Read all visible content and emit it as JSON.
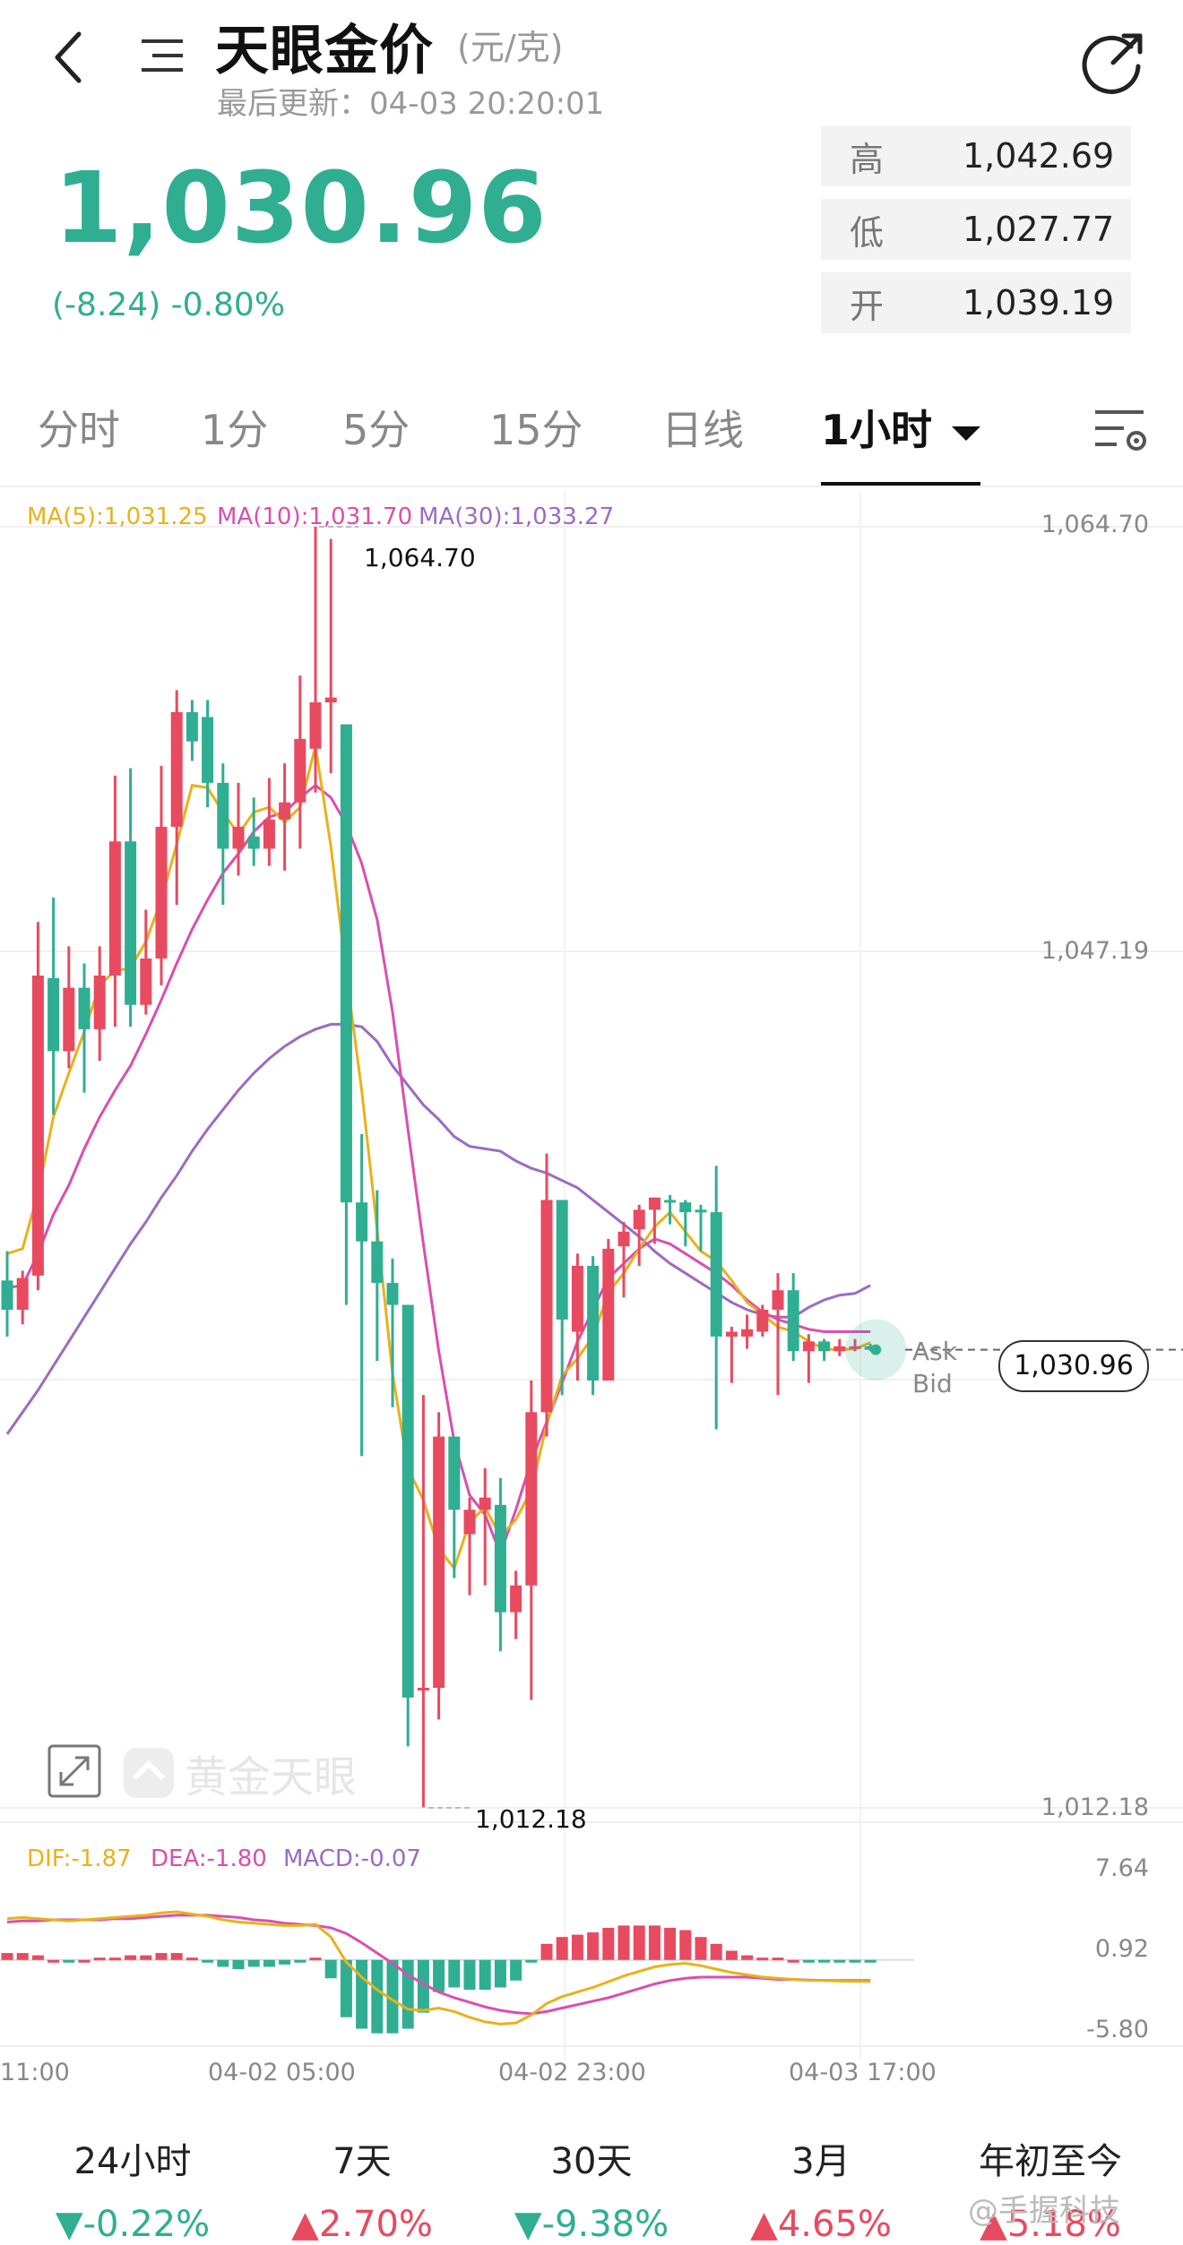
{
  "header": {
    "title": "天眼金价",
    "unit": "(元/克)",
    "updated": "最后更新：04-03 20:20:01",
    "price": "1,030.96",
    "change": "(-8.24)  -0.80%"
  },
  "stats": [
    {
      "key": "高",
      "value": "1,042.69"
    },
    {
      "key": "低",
      "value": "1,027.77"
    },
    {
      "key": "开",
      "value": "1,039.19"
    }
  ],
  "tabs": [
    "分时",
    "1分",
    "5分",
    "15分",
    "日线",
    "1小时"
  ],
  "active_tab": "1小时",
  "legend": {
    "ma5": "MA(5):1,031.25",
    "ma10": "MA(10):1,031.70",
    "ma30": "MA(30):1,033.27",
    "dif": "DIF:-1.87",
    "dea": "DEA:-1.80",
    "macd": "MACD:-0.07"
  },
  "y_axis": [
    "1,064.70",
    "1,047.19",
    "1,012.18"
  ],
  "macd_axis": [
    "7.64",
    "0.92",
    "-5.80"
  ],
  "max_label": "1,064.70",
  "min_label": "1,012.18",
  "current_label": "1,030.96",
  "ask_label": "Ask",
  "bid_label": "Bid",
  "brand_watermark": "黄金天眼",
  "x_axis": [
    "11:00",
    "04-02 05:00",
    "04-02 23:00",
    "04-03 17:00"
  ],
  "periods": [
    {
      "label": "24小时",
      "value": "-0.22%",
      "dir": "down"
    },
    {
      "label": "7天",
      "value": "2.70%",
      "dir": "up"
    },
    {
      "label": "30天",
      "value": "-9.38%",
      "dir": "down"
    },
    {
      "label": "3月",
      "value": "4.65%",
      "dir": "up"
    },
    {
      "label": "年初至今",
      "value": "5.18%",
      "dir": "up"
    }
  ],
  "watermark": "@手握科技",
  "colors": {
    "up": "#e84a5f",
    "down": "#2fae92",
    "ma5": "#e8b21a",
    "ma10": "#d94fb0",
    "ma30": "#9b6bc4"
  },
  "chart_data": {
    "type": "candlestick",
    "ylim": [
      1012.18,
      1064.7
    ],
    "candles": [
      {
        "o": 1033.8,
        "h": 1035.0,
        "c": 1032.6,
        "l": 1031.5
      },
      {
        "o": 1032.6,
        "h": 1034.2,
        "c": 1033.9,
        "l": 1032.0
      },
      {
        "o": 1034.0,
        "h": 1048.5,
        "c": 1046.3,
        "l": 1033.4
      },
      {
        "o": 1046.2,
        "h": 1049.5,
        "c": 1043.2,
        "l": 1040.6
      },
      {
        "o": 1043.2,
        "h": 1047.5,
        "c": 1045.8,
        "l": 1042.5
      },
      {
        "o": 1045.8,
        "h": 1046.8,
        "c": 1044.1,
        "l": 1041.5
      },
      {
        "o": 1044.1,
        "h": 1047.5,
        "c": 1046.3,
        "l": 1042.8
      },
      {
        "o": 1046.3,
        "h": 1054.5,
        "c": 1051.8,
        "l": 1044.2
      },
      {
        "o": 1051.8,
        "h": 1054.8,
        "c": 1045.1,
        "l": 1044.2
      },
      {
        "o": 1045.1,
        "h": 1049.0,
        "c": 1047.0,
        "l": 1044.7
      },
      {
        "o": 1047.0,
        "h": 1054.9,
        "c": 1052.4,
        "l": 1045.9
      },
      {
        "o": 1052.4,
        "h": 1058.0,
        "c": 1057.1,
        "l": 1049.2
      },
      {
        "o": 1057.1,
        "h": 1057.6,
        "c": 1055.9,
        "l": 1055.1
      },
      {
        "o": 1056.9,
        "h": 1057.6,
        "c": 1054.2,
        "l": 1053.2
      },
      {
        "o": 1054.2,
        "h": 1055.0,
        "c": 1051.5,
        "l": 1049.2
      },
      {
        "o": 1051.5,
        "h": 1054.2,
        "c": 1052.4,
        "l": 1050.4
      },
      {
        "o": 1052.0,
        "h": 1053.6,
        "c": 1051.5,
        "l": 1050.8
      },
      {
        "o": 1051.5,
        "h": 1054.4,
        "c": 1052.7,
        "l": 1050.8
      },
      {
        "o": 1052.7,
        "h": 1055.0,
        "c": 1053.4,
        "l": 1050.6
      },
      {
        "o": 1053.4,
        "h": 1058.6,
        "c": 1056.0,
        "l": 1051.5
      },
      {
        "o": 1055.6,
        "h": 1064.7,
        "c": 1057.5,
        "l": 1053.8
      },
      {
        "o": 1057.5,
        "h": 1064.2,
        "c": 1057.7,
        "l": 1054.6
      },
      {
        "o": 1056.6,
        "h": 1056.6,
        "c": 1037.0,
        "l": 1032.8
      },
      {
        "o": 1037.0,
        "h": 1039.8,
        "c": 1035.4,
        "l": 1026.6
      },
      {
        "o": 1035.4,
        "h": 1037.5,
        "c": 1033.7,
        "l": 1030.5
      },
      {
        "o": 1033.7,
        "h": 1034.7,
        "c": 1032.8,
        "l": 1028.6
      },
      {
        "o": 1032.8,
        "h": 1032.8,
        "c": 1016.7,
        "l": 1014.7
      },
      {
        "o": 1017.1,
        "h": 1029.1,
        "c": 1017.1,
        "l": 1012.2
      },
      {
        "o": 1017.1,
        "h": 1028.4,
        "c": 1027.4,
        "l": 1015.8
      },
      {
        "o": 1027.4,
        "h": 1027.4,
        "c": 1024.4,
        "l": 1021.6
      },
      {
        "o": 1023.4,
        "h": 1024.9,
        "c": 1024.4,
        "l": 1020.9
      },
      {
        "o": 1024.4,
        "h": 1026.1,
        "c": 1024.9,
        "l": 1021.3
      },
      {
        "o": 1024.6,
        "h": 1025.7,
        "c": 1020.2,
        "l": 1018.6
      },
      {
        "o": 1020.2,
        "h": 1021.9,
        "c": 1021.3,
        "l": 1019.1
      },
      {
        "o": 1021.3,
        "h": 1029.7,
        "c": 1028.4,
        "l": 1016.6
      },
      {
        "o": 1028.4,
        "h": 1039.0,
        "c": 1037.1,
        "l": 1027.4
      },
      {
        "o": 1037.1,
        "h": 1037.1,
        "c": 1032.2,
        "l": 1029.1
      },
      {
        "o": 1031.7,
        "h": 1034.9,
        "c": 1034.4,
        "l": 1029.7
      },
      {
        "o": 1034.4,
        "h": 1034.8,
        "c": 1029.7,
        "l": 1029.1
      },
      {
        "o": 1029.7,
        "h": 1035.5,
        "c": 1035.1,
        "l": 1029.7
      },
      {
        "o": 1035.2,
        "h": 1036.2,
        "c": 1035.8,
        "l": 1033.1
      },
      {
        "o": 1035.9,
        "h": 1036.9,
        "c": 1036.7,
        "l": 1034.4
      },
      {
        "o": 1036.7,
        "h": 1037.2,
        "c": 1037.2,
        "l": 1035.3
      },
      {
        "o": 1037.1,
        "h": 1037.3,
        "c": 1037.0,
        "l": 1036.1
      },
      {
        "o": 1037.0,
        "h": 1037.1,
        "c": 1036.6,
        "l": 1035.2
      },
      {
        "o": 1036.7,
        "h": 1036.9,
        "c": 1036.6,
        "l": 1035.0
      },
      {
        "o": 1036.6,
        "h": 1038.5,
        "c": 1031.5,
        "l": 1027.7
      },
      {
        "o": 1031.5,
        "h": 1031.9,
        "c": 1031.7,
        "l": 1029.6
      },
      {
        "o": 1031.5,
        "h": 1032.4,
        "c": 1031.8,
        "l": 1031.0
      },
      {
        "o": 1031.7,
        "h": 1032.8,
        "c": 1032.6,
        "l": 1031.5
      },
      {
        "o": 1032.6,
        "h": 1034.1,
        "c": 1033.4,
        "l": 1029.1
      },
      {
        "o": 1033.4,
        "h": 1034.1,
        "c": 1030.9,
        "l": 1030.5
      },
      {
        "o": 1030.9,
        "h": 1031.6,
        "c": 1031.3,
        "l": 1029.6
      },
      {
        "o": 1031.3,
        "h": 1031.4,
        "c": 1030.9,
        "l": 1030.5
      },
      {
        "o": 1030.9,
        "h": 1031.4,
        "c": 1031.1,
        "l": 1030.7
      },
      {
        "o": 1031.1,
        "h": 1031.4,
        "c": 1031.1,
        "l": 1030.9
      },
      {
        "o": 1031.1,
        "h": 1031.2,
        "c": 1030.96,
        "l": 1030.9
      }
    ],
    "ma5": [
      1034.9,
      1035.1,
      1037.4,
      1040.5,
      1042.3,
      1044.0,
      1045.9,
      1046.5,
      1046.6,
      1047.7,
      1049.4,
      1051.7,
      1054.1,
      1054.0,
      1053.0,
      1052.1,
      1053.0,
      1053.2,
      1052.6,
      1053.2,
      1055.7,
      1051.6,
      1046.4,
      1041.6,
      1035.9,
      1030.0,
      1026.1,
      1024.8,
      1022.8,
      1022.0,
      1023.9,
      1024.5,
      1023.3,
      1024.0,
      1025.2,
      1027.9,
      1029.9,
      1030.6,
      1031.5,
      1033.3,
      1034.1,
      1035.1,
      1036.0,
      1036.6,
      1035.8,
      1035.0,
      1034.6,
      1033.8,
      1032.9,
      1032.4,
      1031.9,
      1031.7,
      1031.3,
      1031.0,
      1030.96,
      1031.0,
      1031.25
    ],
    "ma10": [
      1033.5,
      1033.6,
      1034.9,
      1036.5,
      1037.7,
      1039.2,
      1040.5,
      1041.6,
      1042.6,
      1043.9,
      1045.3,
      1046.8,
      1048.2,
      1049.4,
      1050.5,
      1051.3,
      1052.2,
      1052.8,
      1053.0,
      1053.6,
      1054.1,
      1053.6,
      1052.5,
      1050.9,
      1048.6,
      1044.8,
      1040.0,
      1035.3,
      1030.9,
      1027.2,
      1025.0,
      1024.2,
      1022.6,
      1024.4,
      1026.4,
      1028.0,
      1029.6,
      1031.3,
      1032.6,
      1033.9,
      1034.5,
      1035.1,
      1035.5,
      1035.3,
      1034.9,
      1034.5,
      1034.1,
      1033.6,
      1033.0,
      1032.5,
      1032.2,
      1032.0,
      1031.8,
      1031.7,
      1031.7,
      1031.7,
      1031.7
    ],
    "ma30": [
      1027.5,
      1028.4,
      1029.3,
      1030.3,
      1031.3,
      1032.3,
      1033.3,
      1034.3,
      1035.3,
      1036.2,
      1037.2,
      1038.1,
      1039.1,
      1040.0,
      1040.8,
      1041.6,
      1042.3,
      1042.9,
      1043.4,
      1043.8,
      1044.1,
      1044.3,
      1044.3,
      1044.2,
      1043.6,
      1042.6,
      1041.8,
      1041.0,
      1040.4,
      1039.7,
      1039.3,
      1039.2,
      1039.1,
      1038.7,
      1038.4,
      1038.2,
      1037.9,
      1037.6,
      1037.1,
      1036.6,
      1036.1,
      1035.6,
      1035.0,
      1034.5,
      1034.1,
      1033.7,
      1033.3,
      1032.9,
      1032.6,
      1032.4,
      1032.3,
      1032.3,
      1032.7,
      1033.0,
      1033.2,
      1033.27,
      1033.6
    ],
    "macd_ylim": [
      -5.8,
      7.64
    ],
    "dif": [
      3.6,
      3.7,
      3.6,
      3.5,
      3.4,
      3.5,
      3.6,
      3.7,
      3.8,
      3.9,
      4.1,
      4.2,
      4.0,
      3.8,
      3.5,
      3.3,
      3.2,
      3.1,
      3.0,
      3.0,
      3.1,
      2.0,
      -0.2,
      -1.5,
      -2.6,
      -3.5,
      -4.3,
      -4.4,
      -4.2,
      -4.5,
      -5.0,
      -5.4,
      -5.6,
      -5.5,
      -4.8,
      -3.8,
      -3.2,
      -2.8,
      -2.4,
      -1.9,
      -1.4,
      -1.0,
      -0.6,
      -0.4,
      -0.3,
      -0.5,
      -0.8,
      -1.1,
      -1.3,
      -1.5,
      -1.6,
      -1.7,
      -1.8,
      -1.8,
      -1.85,
      -1.86,
      -1.87
    ],
    "dea": [
      3.3,
      3.4,
      3.4,
      3.5,
      3.5,
      3.5,
      3.5,
      3.6,
      3.6,
      3.7,
      3.8,
      3.9,
      3.9,
      3.9,
      3.8,
      3.7,
      3.5,
      3.4,
      3.2,
      3.1,
      3.0,
      2.8,
      2.3,
      1.5,
      0.6,
      -0.3,
      -1.3,
      -2.1,
      -2.8,
      -3.3,
      -3.7,
      -4.1,
      -4.4,
      -4.6,
      -4.7,
      -4.5,
      -4.2,
      -3.9,
      -3.6,
      -3.3,
      -2.9,
      -2.5,
      -2.1,
      -1.8,
      -1.6,
      -1.5,
      -1.5,
      -1.5,
      -1.5,
      -1.6,
      -1.7,
      -1.7,
      -1.75,
      -1.78,
      -1.79,
      -1.8,
      -1.8
    ]
  }
}
